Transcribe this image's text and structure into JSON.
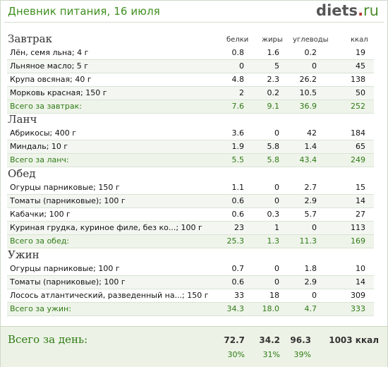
{
  "header": {
    "title": "Дневник питания, 16 июля",
    "logo_main": "diets",
    "logo_dot": ".",
    "logo_tld": "ru"
  },
  "columns": {
    "proteins": "белки",
    "fats": "жиры",
    "carbs": "углеводы",
    "kcal": "ккал"
  },
  "meals": [
    {
      "title": "Завтрак",
      "items": [
        {
          "name": "Лён, семя льна; 4 г",
          "p": "0.8",
          "f": "1.6",
          "c": "0.2",
          "k": "19"
        },
        {
          "name": "Льняное масло; 5 г",
          "p": "0",
          "f": "5",
          "c": "0",
          "k": "45"
        },
        {
          "name": "Крупа овсяная; 40 г",
          "p": "4.8",
          "f": "2.3",
          "c": "26.2",
          "k": "138"
        },
        {
          "name": "Морковь красная; 150 г",
          "p": "2",
          "f": "0.2",
          "c": "10.5",
          "k": "50"
        }
      ],
      "total": {
        "name": "Всего за завтрак:",
        "p": "7.6",
        "f": "9.1",
        "c": "36.9",
        "k": "252"
      }
    },
    {
      "title": "Ланч",
      "items": [
        {
          "name": "Абрикосы; 400 г",
          "p": "3.6",
          "f": "0",
          "c": "42",
          "k": "184"
        },
        {
          "name": "Миндаль; 10 г",
          "p": "1.9",
          "f": "5.8",
          "c": "1.4",
          "k": "65"
        }
      ],
      "total": {
        "name": "Всего за ланч:",
        "p": "5.5",
        "f": "5.8",
        "c": "43.4",
        "k": "249"
      }
    },
    {
      "title": "Обед",
      "items": [
        {
          "name": "Огурцы парниковые; 150 г",
          "p": "1.1",
          "f": "0",
          "c": "2.7",
          "k": "15"
        },
        {
          "name": "Томаты (парниковые); 100 г",
          "p": "0.6",
          "f": "0",
          "c": "2.9",
          "k": "14"
        },
        {
          "name": "Кабачки; 100 г",
          "p": "0.6",
          "f": "0.3",
          "c": "5.7",
          "k": "27"
        },
        {
          "name": "Куриная грудка, куриное филе, без ко...; 100 г",
          "p": "23",
          "f": "1",
          "c": "0",
          "k": "113"
        }
      ],
      "total": {
        "name": "Всего за обед:",
        "p": "25.3",
        "f": "1.3",
        "c": "11.3",
        "k": "169"
      }
    },
    {
      "title": "Ужин",
      "items": [
        {
          "name": "Огурцы парниковые; 100 г",
          "p": "0.7",
          "f": "0",
          "c": "1.8",
          "k": "10"
        },
        {
          "name": "Томаты (парниковые); 100 г",
          "p": "0.6",
          "f": "0",
          "c": "2.9",
          "k": "14"
        },
        {
          "name": "Лосось атлантический, разведенный на...; 150 г",
          "p": "33",
          "f": "18",
          "c": "0",
          "k": "309"
        }
      ],
      "total": {
        "name": "Всего за ужин:",
        "p": "34.3",
        "f": "18.0",
        "c": "4.7",
        "k": "333"
      }
    }
  ],
  "day_total": {
    "label": "Всего за день:",
    "p": "72.7",
    "f": "34.2",
    "c": "96.3",
    "k": "1003 ккал",
    "p_pct": "30%",
    "f_pct": "31%",
    "c_pct": "39%"
  },
  "colors": {
    "accent": "#3f8f1f",
    "total_text": "#2f7a14",
    "logo_red": "#b53a2a"
  }
}
